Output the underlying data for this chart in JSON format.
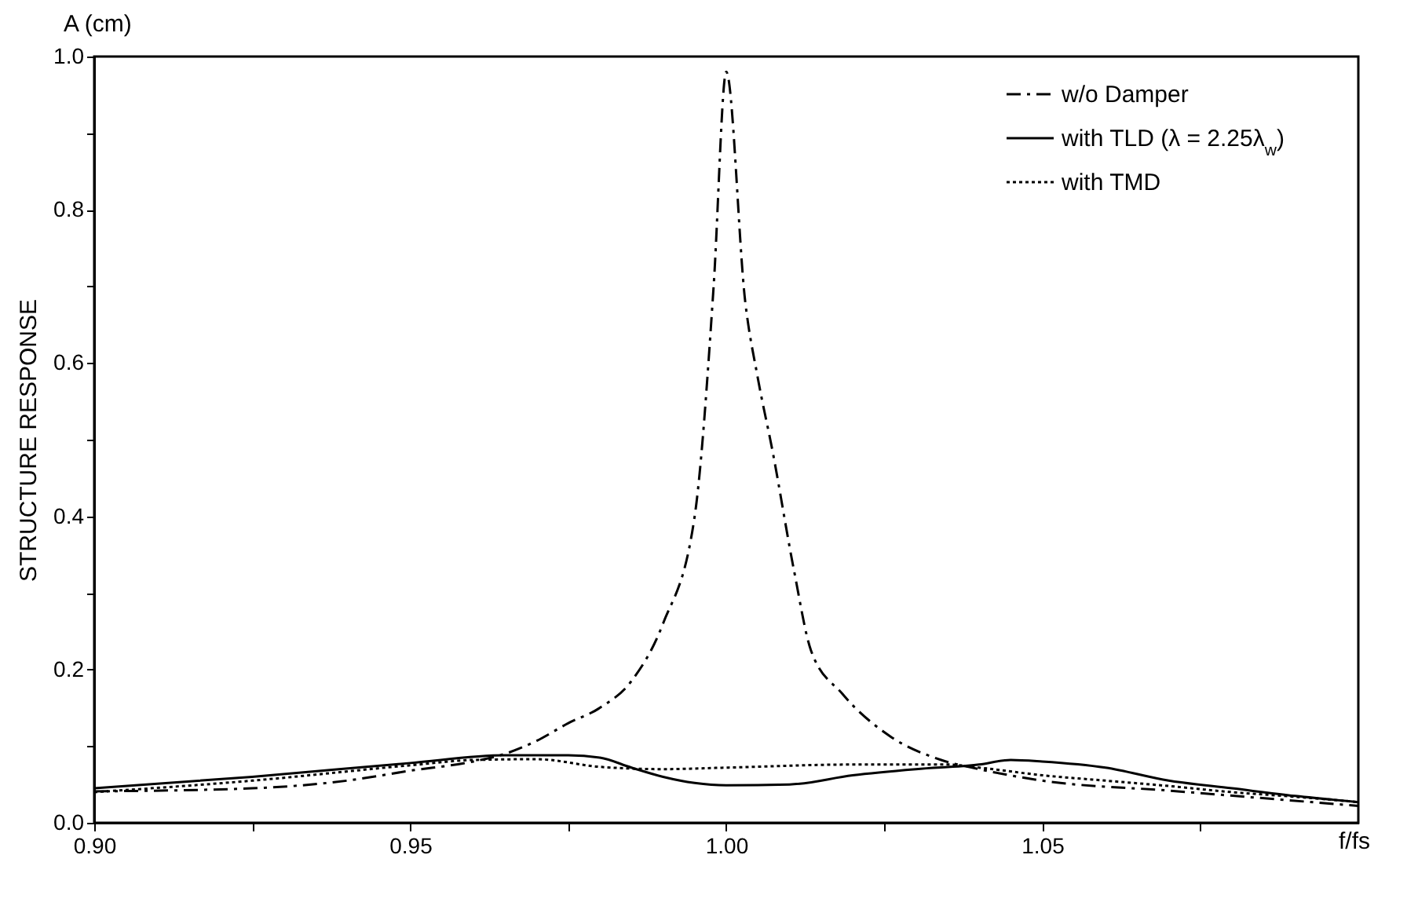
{
  "chart_data": {
    "type": "line",
    "ylabel": "STRUCTURE RESPONSE",
    "xlabel": "f/fs",
    "annotations": [
      "A (cm)"
    ],
    "xlim": [
      0.9,
      1.1
    ],
    "xticks": [
      {
        "value": 0.9,
        "label": "0.90"
      },
      {
        "value": 0.925,
        "label": null
      },
      {
        "value": 0.95,
        "label": "0.95"
      },
      {
        "value": 0.975,
        "label": null
      },
      {
        "value": 1.0,
        "label": "1.00"
      },
      {
        "value": 1.025,
        "label": null
      },
      {
        "value": 1.05,
        "label": "1.05"
      },
      {
        "value": 1.075,
        "label": null
      }
    ],
    "ylim": [
      0,
      1
    ],
    "yticks": [
      {
        "value": 0,
        "label": "0.0"
      },
      {
        "value": 0.1,
        "label": null
      },
      {
        "value": 0.2,
        "label": "0.2"
      },
      {
        "value": 0.3,
        "label": null
      },
      {
        "value": 0.4,
        "label": "0.4"
      },
      {
        "value": 0.5,
        "label": null
      },
      {
        "value": 0.6,
        "label": "0.6"
      },
      {
        "value": 0.7,
        "label": null
      },
      {
        "value": 0.8,
        "label": "0.8"
      },
      {
        "value": 0.9,
        "label": null
      },
      {
        "value": 1.0,
        "label": "1.0"
      }
    ],
    "grid": false,
    "legend": "top right",
    "series": [
      {
        "name": "w/o Damper",
        "color": "#000000",
        "line_style": "dashed",
        "x": [
          0.9,
          0.925,
          0.94,
          0.95,
          0.96,
          0.965,
          0.97,
          0.975,
          0.98,
          0.985,
          0.99,
          0.995,
          0.998,
          1.0,
          1.003,
          1.005,
          1.0073,
          1.0107,
          1.0134,
          1.0184,
          1.0259,
          1.034,
          1.04,
          1.05,
          1.07,
          1.1
        ],
        "values": [
          0.041,
          0.045,
          0.055,
          0.068,
          0.08,
          0.09,
          0.107,
          0.13,
          0.15,
          0.185,
          0.26,
          0.4,
          0.7,
          0.98,
          0.68,
          0.58,
          0.486,
          0.33,
          0.225,
          0.168,
          0.113,
          0.082,
          0.07,
          0.055,
          0.042,
          0.022
        ]
      },
      {
        "name": "with TLD (λ = 2.25λ$_{w}$)",
        "color": "#000000",
        "line_style": "solid",
        "x": [
          0.9,
          0.925,
          0.95,
          0.965,
          0.975,
          0.98,
          0.985,
          0.99,
          0.995,
          1.0,
          1.01,
          1.02,
          1.03,
          1.04,
          1.045,
          1.05,
          1.06,
          1.07,
          1.08,
          1.09,
          1.1
        ],
        "values": [
          0.045,
          0.06,
          0.078,
          0.088,
          0.088,
          0.085,
          0.072,
          0.06,
          0.052,
          0.049,
          0.05,
          0.062,
          0.07,
          0.076,
          0.082,
          0.08,
          0.072,
          0.055,
          0.045,
          0.035,
          0.027
        ]
      },
      {
        "name": "with TMD",
        "color": "#000000",
        "line_style": "dotted",
        "x": [
          0.9,
          0.925,
          0.95,
          0.96,
          0.97,
          0.98,
          0.99,
          1.0,
          1.02,
          1.035,
          1.04,
          1.05,
          1.06,
          1.07,
          1.08,
          1.09,
          1.1
        ],
        "values": [
          0.04,
          0.055,
          0.075,
          0.082,
          0.083,
          0.073,
          0.07,
          0.072,
          0.076,
          0.076,
          0.072,
          0.062,
          0.055,
          0.048,
          0.04,
          0.034,
          0.027
        ]
      }
    ]
  }
}
